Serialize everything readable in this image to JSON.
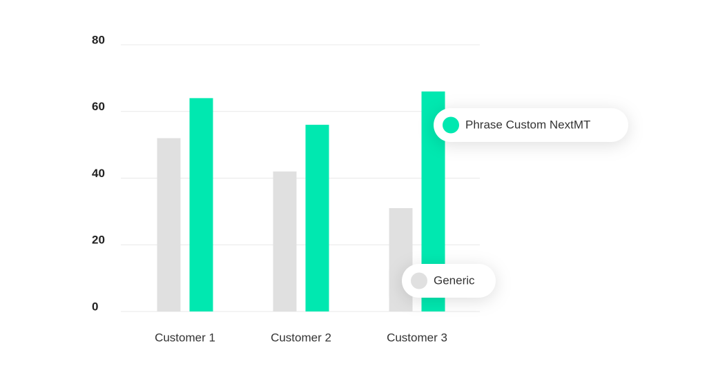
{
  "chart_data": {
    "type": "bar",
    "categories": [
      "Customer 1",
      "Customer 2",
      "Customer 3"
    ],
    "series": [
      {
        "name": "Generic",
        "color": "#e0e0e0",
        "values": [
          52,
          42,
          31
        ]
      },
      {
        "name": "Phrase Custom NextMT",
        "color": "#00e8b0",
        "values": [
          64,
          56,
          66
        ]
      }
    ],
    "ylim": [
      0,
      80
    ],
    "yticks": [
      0,
      20,
      40,
      60,
      80
    ],
    "grid": true
  }
}
